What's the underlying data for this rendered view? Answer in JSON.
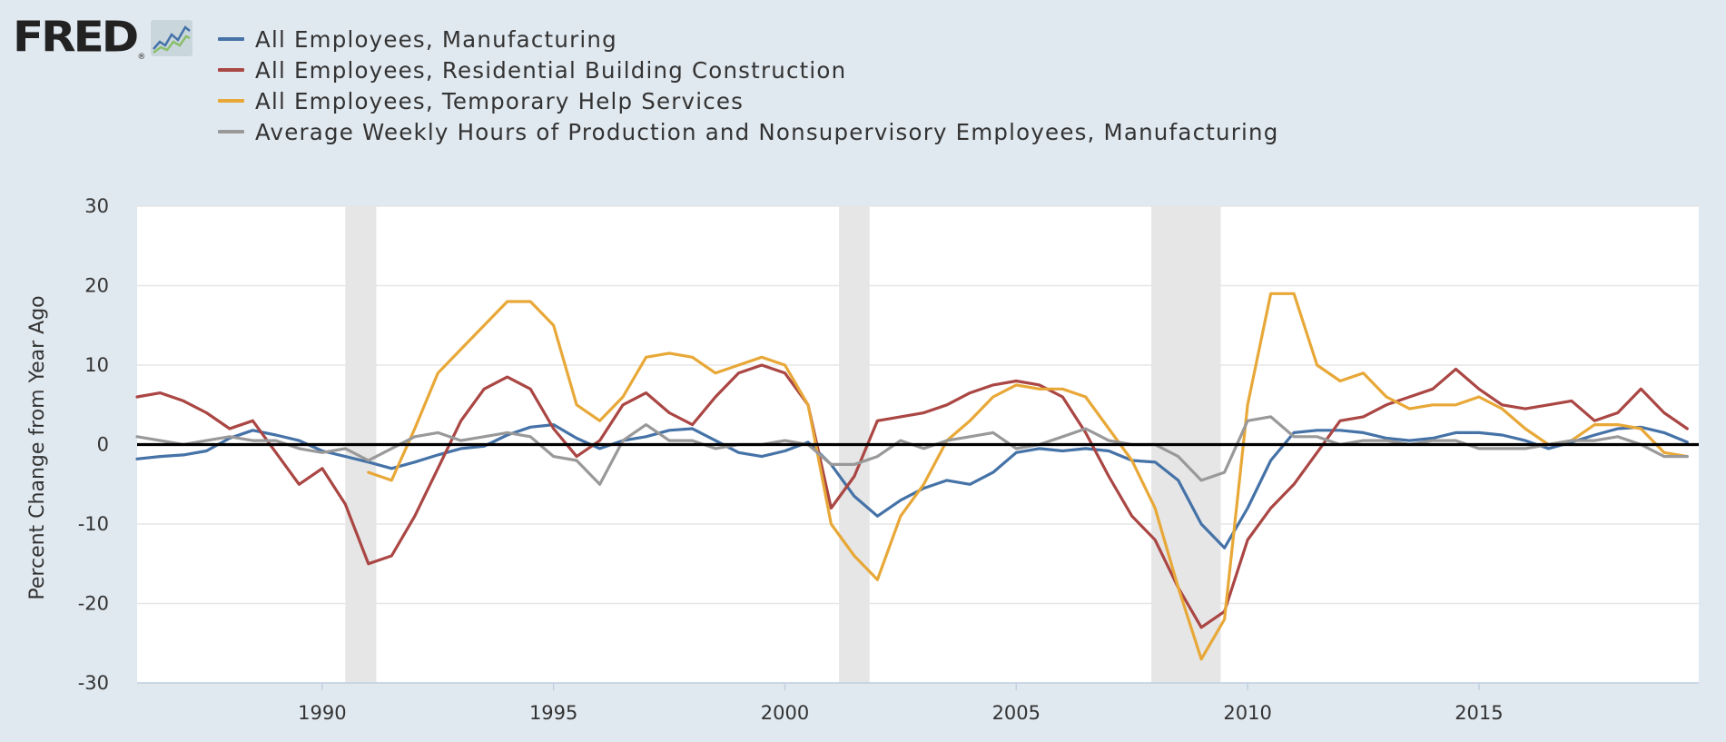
{
  "logo": {
    "text": "FRED",
    "reg": "®"
  },
  "chart_data": {
    "type": "line",
    "title": "",
    "xlabel": "",
    "ylabel": "Percent Change from Year Ago",
    "xlim": [
      1986.0,
      2019.75
    ],
    "ylim": [
      -30,
      30
    ],
    "yticks": [
      30,
      20,
      10,
      0,
      -10,
      -20,
      -30
    ],
    "xticks": [
      1990,
      1995,
      2000,
      2005,
      2010,
      2015
    ],
    "grid": true,
    "legend_position": "top-left",
    "zero_line": true,
    "recessions": [
      [
        1990.5,
        1991.17
      ],
      [
        2001.17,
        2001.83
      ],
      [
        2007.92,
        2009.42
      ]
    ],
    "colors": {
      "background": "#e1e9f0",
      "plot": "#ffffff",
      "grid": "#e6e6e6",
      "recession": "#e6e6e6",
      "zero_line": "#000000"
    },
    "series": [
      {
        "name": "All Employees, Manufacturing",
        "color": "#4572a7",
        "x": [
          1986.0,
          1986.5,
          1987.0,
          1987.5,
          1988.0,
          1988.5,
          1989.0,
          1989.5,
          1990.0,
          1990.5,
          1991.0,
          1991.5,
          1992.0,
          1992.5,
          1993.0,
          1993.5,
          1994.0,
          1994.5,
          1995.0,
          1995.5,
          1996.0,
          1996.5,
          1997.0,
          1997.5,
          1998.0,
          1998.5,
          1999.0,
          1999.5,
          2000.0,
          2000.5,
          2001.0,
          2001.5,
          2002.0,
          2002.5,
          2003.0,
          2003.5,
          2004.0,
          2004.5,
          2005.0,
          2005.5,
          2006.0,
          2006.5,
          2007.0,
          2007.5,
          2008.0,
          2008.5,
          2009.0,
          2009.5,
          2010.0,
          2010.5,
          2011.0,
          2011.5,
          2012.0,
          2012.5,
          2013.0,
          2013.5,
          2014.0,
          2014.5,
          2015.0,
          2015.5,
          2016.0,
          2016.5,
          2017.0,
          2017.5,
          2018.0,
          2018.5,
          2019.0,
          2019.5
        ],
        "y": [
          -1.8,
          -1.5,
          -1.3,
          -0.8,
          0.8,
          1.8,
          1.2,
          0.5,
          -0.8,
          -1.5,
          -2.2,
          -3.0,
          -2.2,
          -1.3,
          -0.5,
          -0.2,
          1.2,
          2.2,
          2.5,
          0.8,
          -0.5,
          0.5,
          1.0,
          1.8,
          2.0,
          0.5,
          -1.0,
          -1.5,
          -0.8,
          0.3,
          -2.5,
          -6.5,
          -9.0,
          -7.0,
          -5.5,
          -4.5,
          -5.0,
          -3.5,
          -1.0,
          -0.5,
          -0.8,
          -0.5,
          -0.8,
          -2.0,
          -2.2,
          -4.5,
          -10.0,
          -13.0,
          -8.0,
          -2.0,
          1.5,
          1.8,
          1.8,
          1.5,
          0.8,
          0.5,
          0.8,
          1.5,
          1.5,
          1.2,
          0.5,
          -0.5,
          0.3,
          1.2,
          2.0,
          2.2,
          1.5,
          0.3
        ]
      },
      {
        "name": "All Employees, Residential Building Construction",
        "color": "#aa4643",
        "x": [
          1986.0,
          1986.5,
          1987.0,
          1987.5,
          1988.0,
          1988.5,
          1989.0,
          1989.5,
          1990.0,
          1990.5,
          1991.0,
          1991.5,
          1992.0,
          1992.5,
          1993.0,
          1993.5,
          1994.0,
          1994.5,
          1995.0,
          1995.5,
          1996.0,
          1996.5,
          1997.0,
          1997.5,
          1998.0,
          1998.5,
          1999.0,
          1999.5,
          2000.0,
          2000.5,
          2001.0,
          2001.5,
          2002.0,
          2002.5,
          2003.0,
          2003.5,
          2004.0,
          2004.5,
          2005.0,
          2005.5,
          2006.0,
          2006.5,
          2007.0,
          2007.5,
          2008.0,
          2008.5,
          2009.0,
          2009.5,
          2010.0,
          2010.5,
          2011.0,
          2011.5,
          2012.0,
          2012.5,
          2013.0,
          2013.5,
          2014.0,
          2014.5,
          2015.0,
          2015.5,
          2016.0,
          2016.5,
          2017.0,
          2017.5,
          2018.0,
          2018.5,
          2019.0,
          2019.5
        ],
        "y": [
          6.0,
          6.5,
          5.5,
          4.0,
          2.0,
          3.0,
          -1.0,
          -5.0,
          -3.0,
          -7.5,
          -15.0,
          -14.0,
          -9.0,
          -3.0,
          3.0,
          7.0,
          8.5,
          7.0,
          2.0,
          -1.5,
          0.5,
          5.0,
          6.5,
          4.0,
          2.5,
          6.0,
          9.0,
          10.0,
          9.0,
          5.0,
          -8.0,
          -4.0,
          3.0,
          3.5,
          4.0,
          5.0,
          6.5,
          7.5,
          8.0,
          7.5,
          6.0,
          1.5,
          -4.0,
          -9.0,
          -12.0,
          -18.0,
          -23.0,
          -21.0,
          -12.0,
          -8.0,
          -5.0,
          -1.0,
          3.0,
          3.5,
          5.0,
          6.0,
          7.0,
          9.5,
          7.0,
          5.0,
          4.5,
          5.0,
          5.5,
          3.0,
          4.0,
          7.0,
          4.0,
          2.0
        ]
      },
      {
        "name": "All Employees, Temporary Help Services",
        "color": "#e8a838",
        "x": [
          1991.0,
          1991.5,
          1992.0,
          1992.5,
          1993.0,
          1993.5,
          1994.0,
          1994.5,
          1995.0,
          1995.5,
          1996.0,
          1996.5,
          1997.0,
          1997.5,
          1998.0,
          1998.5,
          1999.0,
          1999.5,
          2000.0,
          2000.5,
          2001.0,
          2001.5,
          2002.0,
          2002.5,
          2003.0,
          2003.5,
          2004.0,
          2004.5,
          2005.0,
          2005.5,
          2006.0,
          2006.5,
          2007.0,
          2007.5,
          2008.0,
          2008.5,
          2009.0,
          2009.5,
          2010.0,
          2010.5,
          2011.0,
          2011.5,
          2012.0,
          2012.5,
          2013.0,
          2013.5,
          2014.0,
          2014.5,
          2015.0,
          2015.5,
          2016.0,
          2016.5,
          2017.0,
          2017.5,
          2018.0,
          2018.5,
          2019.0,
          2019.5
        ],
        "y": [
          -3.5,
          -4.5,
          2.0,
          9.0,
          12.0,
          15.0,
          18.0,
          18.0,
          15.0,
          5.0,
          3.0,
          6.0,
          11.0,
          11.5,
          11.0,
          9.0,
          10.0,
          11.0,
          10.0,
          5.0,
          -10.0,
          -14.0,
          -17.0,
          -9.0,
          -5.0,
          0.5,
          3.0,
          6.0,
          7.5,
          7.0,
          7.0,
          6.0,
          2.0,
          -2.0,
          -8.0,
          -18.0,
          -27.0,
          -22.0,
          5.0,
          19.0,
          19.0,
          10.0,
          8.0,
          9.0,
          6.0,
          4.5,
          5.0,
          5.0,
          6.0,
          4.5,
          2.0,
          0.0,
          0.5,
          2.5,
          2.5,
          2.0,
          -1.0,
          -1.5
        ]
      },
      {
        "name": "Average Weekly Hours of Production and Nonsupervisory Employees, Manufacturing",
        "color": "#999999",
        "x": [
          1986.0,
          1986.5,
          1987.0,
          1987.5,
          1988.0,
          1988.5,
          1989.0,
          1989.5,
          1990.0,
          1990.5,
          1991.0,
          1991.5,
          1992.0,
          1992.5,
          1993.0,
          1993.5,
          1994.0,
          1994.5,
          1995.0,
          1995.5,
          1996.0,
          1996.5,
          1997.0,
          1997.5,
          1998.0,
          1998.5,
          1999.0,
          1999.5,
          2000.0,
          2000.5,
          2001.0,
          2001.5,
          2002.0,
          2002.5,
          2003.0,
          2003.5,
          2004.0,
          2004.5,
          2005.0,
          2005.5,
          2006.0,
          2006.5,
          2007.0,
          2007.5,
          2008.0,
          2008.5,
          2009.0,
          2009.5,
          2010.0,
          2010.5,
          2011.0,
          2011.5,
          2012.0,
          2012.5,
          2013.0,
          2013.5,
          2014.0,
          2014.5,
          2015.0,
          2015.5,
          2016.0,
          2016.5,
          2017.0,
          2017.5,
          2018.0,
          2018.5,
          2019.0,
          2019.5
        ],
        "y": [
          1.0,
          0.5,
          0.0,
          0.5,
          1.0,
          0.5,
          0.5,
          -0.5,
          -1.0,
          -0.5,
          -2.0,
          -0.5,
          1.0,
          1.5,
          0.5,
          1.0,
          1.5,
          1.0,
          -1.5,
          -2.0,
          -5.0,
          0.5,
          2.5,
          0.5,
          0.5,
          -0.5,
          0.0,
          0.0,
          0.5,
          0.0,
          -2.5,
          -2.5,
          -1.5,
          0.5,
          -0.5,
          0.5,
          1.0,
          1.5,
          -0.5,
          0.0,
          1.0,
          2.0,
          0.5,
          0.0,
          0.0,
          -1.5,
          -4.5,
          -3.5,
          3.0,
          3.5,
          1.0,
          1.0,
          0.0,
          0.5,
          0.5,
          0.0,
          0.5,
          0.5,
          -0.5,
          -0.5,
          -0.5,
          0.0,
          0.5,
          0.5,
          1.0,
          0.0,
          -1.5,
          -1.5
        ]
      }
    ]
  }
}
